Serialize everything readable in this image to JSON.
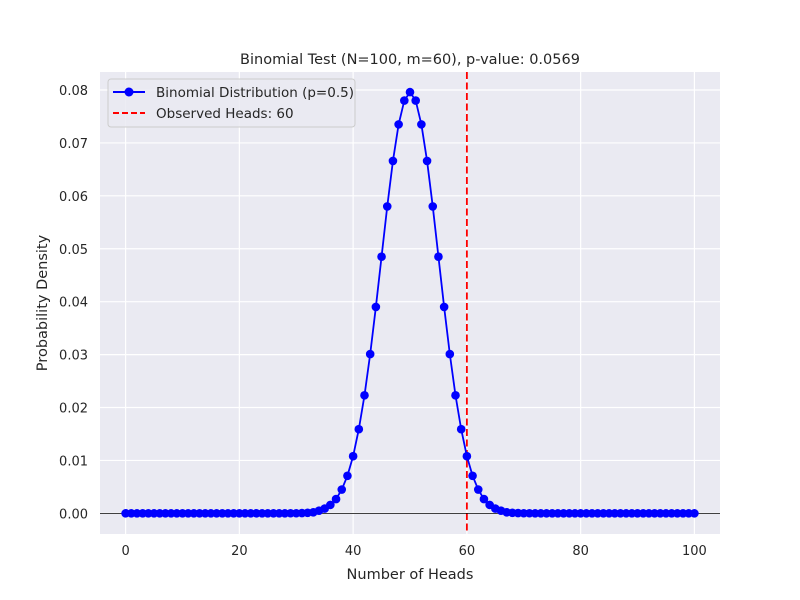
{
  "chart_data": {
    "type": "line",
    "title": "Binomial Test (N=100, m=60), p-value: 0.0569",
    "xlabel": "Number of Heads",
    "ylabel": "Probability Density",
    "xlim": [
      -4.5,
      104.5
    ],
    "ylim": [
      -0.0039,
      0.0834
    ],
    "x_ticks": [
      0,
      20,
      40,
      60,
      80,
      100
    ],
    "x_tick_labels": [
      "0",
      "20",
      "40",
      "60",
      "80",
      "100"
    ],
    "y_ticks": [
      0.0,
      0.01,
      0.02,
      0.03,
      0.04,
      0.05,
      0.06,
      0.07,
      0.08
    ],
    "y_tick_labels": [
      "0.00",
      "0.01",
      "0.02",
      "0.03",
      "0.04",
      "0.05",
      "0.06",
      "0.07",
      "0.08"
    ],
    "grid": true,
    "legend_position": "top-left",
    "background_color": "#EAEAF2",
    "grid_color": "#FFFFFF",
    "series": [
      {
        "name": "Binomial Distribution (p=0.5)",
        "color": "#0000FF",
        "marker": "circle",
        "x": [
          0,
          1,
          2,
          3,
          4,
          5,
          6,
          7,
          8,
          9,
          10,
          11,
          12,
          13,
          14,
          15,
          16,
          17,
          18,
          19,
          20,
          21,
          22,
          23,
          24,
          25,
          26,
          27,
          28,
          29,
          30,
          31,
          32,
          33,
          34,
          35,
          36,
          37,
          38,
          39,
          40,
          41,
          42,
          43,
          44,
          45,
          46,
          47,
          48,
          49,
          50,
          51,
          52,
          53,
          54,
          55,
          56,
          57,
          58,
          59,
          60,
          61,
          62,
          63,
          64,
          65,
          66,
          67,
          68,
          69,
          70,
          71,
          72,
          73,
          74,
          75,
          76,
          77,
          78,
          79,
          80,
          81,
          82,
          83,
          84,
          85,
          86,
          87,
          88,
          89,
          90,
          91,
          92,
          93,
          94,
          95,
          96,
          97,
          98,
          99,
          100
        ],
        "y": [
          0,
          0,
          0,
          0,
          0,
          0,
          0,
          0,
          0,
          0,
          0,
          0,
          0,
          0,
          0,
          0,
          0,
          0,
          0,
          0,
          0,
          0,
          0,
          0,
          0,
          0,
          0,
          0,
          0,
          2e-05,
          2e-05,
          5e-05,
          0.0001,
          0.0002,
          0.0005,
          0.0009,
          0.0016,
          0.0027,
          0.0045,
          0.0071,
          0.0108,
          0.0159,
          0.0223,
          0.0301,
          0.039,
          0.0485,
          0.058,
          0.0666,
          0.0735,
          0.078,
          0.0796,
          0.078,
          0.0735,
          0.0666,
          0.058,
          0.0485,
          0.039,
          0.0301,
          0.0223,
          0.0159,
          0.0108,
          0.0071,
          0.0045,
          0.0027,
          0.0016,
          0.0009,
          0.0005,
          0.0002,
          0.0001,
          5e-05,
          2e-05,
          2e-05,
          0,
          0,
          0,
          0,
          0,
          0,
          0,
          0,
          0,
          0,
          0,
          0,
          0,
          0,
          0,
          0,
          0,
          0,
          0,
          0,
          0,
          0,
          0,
          0,
          0,
          0,
          0,
          0,
          0
        ]
      }
    ],
    "reference_lines": [
      {
        "name": "Observed Heads: 60",
        "orientation": "vertical",
        "x": 60,
        "color": "#FF0000",
        "style": "dashed"
      },
      {
        "orientation": "horizontal",
        "y": 0,
        "color": "#000000",
        "style": "solid"
      }
    ]
  }
}
